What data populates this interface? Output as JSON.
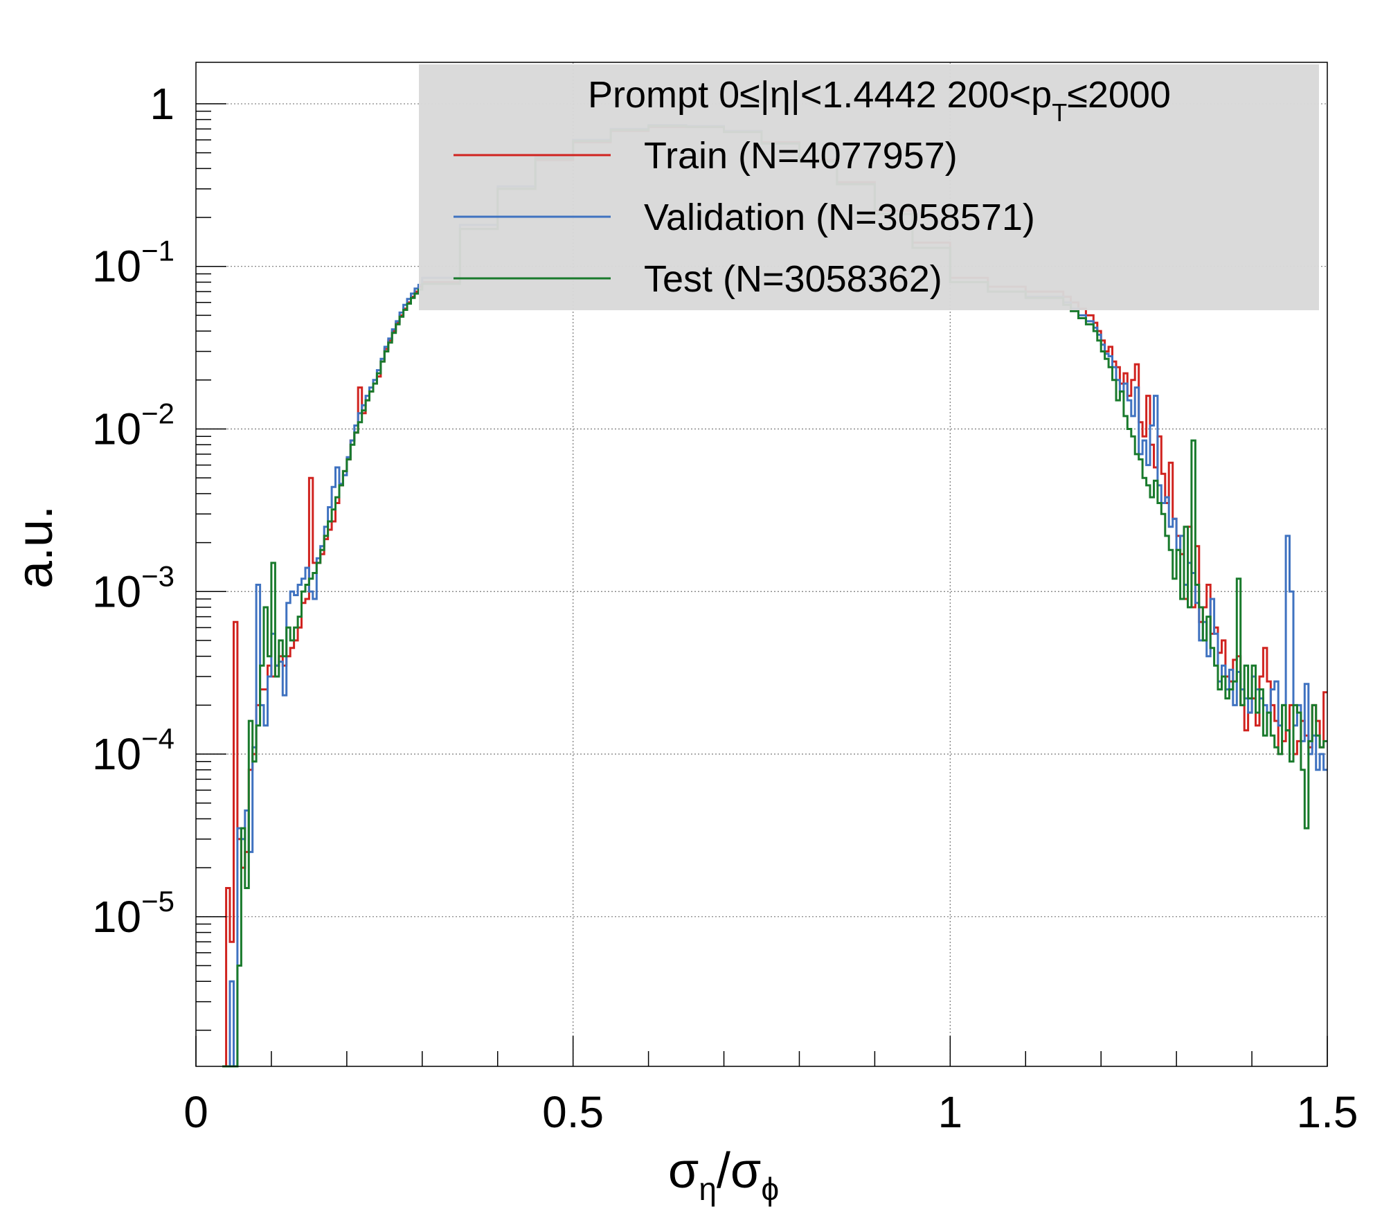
{
  "chart_data": {
    "type": "line",
    "title": "",
    "ylabel": "a.u.",
    "xlabel_main": "σ",
    "xlabel_sub1": "η",
    "xlabel_slash": "/σ",
    "xlabel_sub2": "ϕ",
    "xlim": [
      0,
      1.5
    ],
    "ylim": [
      1.2e-06,
      1.8
    ],
    "yscale": "log",
    "grid": true,
    "x_ticks": [
      {
        "value": 0,
        "label": "0"
      },
      {
        "value": 0.5,
        "label": "0.5"
      },
      {
        "value": 1,
        "label": "1"
      },
      {
        "value": 1.5,
        "label": "1.5"
      }
    ],
    "y_ticks": [
      {
        "value": 1,
        "base": "1",
        "exp": ""
      },
      {
        "value": 0.1,
        "base": "10",
        "exp": "−1"
      },
      {
        "value": 0.01,
        "base": "10",
        "exp": "−2"
      },
      {
        "value": 0.001,
        "base": "10",
        "exp": "−3"
      },
      {
        "value": 0.0001,
        "base": "10",
        "exp": "−4"
      },
      {
        "value": 1e-05,
        "base": "10",
        "exp": "−5"
      }
    ],
    "legend": {
      "placement": "top-right",
      "header_parts": [
        "Prompt  0≤|η|<1.4442  200<p",
        "T",
        "≤2000"
      ],
      "entries": [
        {
          "label": "Train (N=4077957)",
          "color": "#d0231f"
        },
        {
          "label": "Validation (N=3058571)",
          "color": "#3f72c0"
        },
        {
          "label": "Test (N=3058362)",
          "color": "#197a2c"
        }
      ]
    },
    "series": [
      {
        "name": "Train (N=4077957)",
        "color": "#d0231f",
        "x": [
          0.035,
          0.04,
          0.045,
          0.05,
          0.055,
          0.06,
          0.065,
          0.07,
          0.075,
          0.08,
          0.085,
          0.09,
          0.095,
          0.1,
          0.105,
          0.11,
          0.115,
          0.12,
          0.125,
          0.13,
          0.135,
          0.14,
          0.145,
          0.15,
          0.155,
          0.16,
          0.165,
          0.17,
          0.175,
          0.18,
          0.185,
          0.19,
          0.195,
          0.2,
          0.205,
          0.21,
          0.215,
          0.22,
          0.225,
          0.23,
          0.235,
          0.24,
          0.245,
          0.25,
          0.255,
          0.26,
          0.265,
          0.27,
          0.275,
          0.28,
          0.285,
          0.29,
          0.295,
          0.3,
          0.35,
          0.4,
          0.45,
          0.5,
          0.55,
          0.6,
          0.65,
          0.7,
          0.75,
          0.8,
          0.85,
          0.9,
          0.95,
          1.0,
          1.05,
          1.1,
          1.15,
          1.16,
          1.17,
          1.18,
          1.19,
          1.195,
          1.2,
          1.205,
          1.21,
          1.215,
          1.22,
          1.225,
          1.23,
          1.235,
          1.24,
          1.245,
          1.25,
          1.255,
          1.26,
          1.265,
          1.27,
          1.275,
          1.28,
          1.285,
          1.29,
          1.295,
          1.3,
          1.305,
          1.31,
          1.315,
          1.32,
          1.325,
          1.33,
          1.335,
          1.34,
          1.345,
          1.35,
          1.355,
          1.36,
          1.365,
          1.37,
          1.375,
          1.38,
          1.385,
          1.39,
          1.395,
          1.4,
          1.405,
          1.41,
          1.415,
          1.42,
          1.425,
          1.43,
          1.435,
          1.44,
          1.445,
          1.45,
          1.455,
          1.46,
          1.465,
          1.47,
          1.475,
          1.48,
          1.485,
          1.49,
          1.495
        ],
        "y": [
          1.2e-06,
          1.5e-05,
          7e-06,
          0.00065,
          3e-05,
          2e-05,
          2.5e-05,
          8e-05,
          0.0001,
          0.0002,
          0.00025,
          0.00025,
          0.00035,
          0.0003,
          0.00035,
          0.0004,
          0.00035,
          0.0004,
          0.00045,
          0.0005,
          0.0006,
          0.00085,
          0.0009,
          0.005,
          0.0015,
          0.0015,
          0.0017,
          0.0021,
          0.0024,
          0.0027,
          0.0035,
          0.0045,
          0.0055,
          0.0065,
          0.0085,
          0.0095,
          0.018,
          0.0125,
          0.015,
          0.017,
          0.019,
          0.021,
          0.026,
          0.031,
          0.035,
          0.04,
          0.045,
          0.05,
          0.055,
          0.06,
          0.065,
          0.07,
          0.075,
          0.08,
          0.17,
          0.3,
          0.45,
          0.58,
          0.68,
          0.72,
          0.72,
          0.68,
          0.58,
          0.45,
          0.33,
          0.22,
          0.14,
          0.085,
          0.075,
          0.07,
          0.065,
          0.06,
          0.055,
          0.05,
          0.045,
          0.04,
          0.035,
          0.03,
          0.032,
          0.026,
          0.024,
          0.019,
          0.022,
          0.016,
          0.02,
          0.025,
          0.011,
          0.009,
          0.016,
          0.008,
          0.0058,
          0.009,
          0.0053,
          0.0035,
          0.0062,
          0.0028,
          0.0022,
          0.0017,
          0.0009,
          0.0025,
          0.0008,
          0.0019,
          0.00065,
          0.0008,
          0.0011,
          0.00055,
          0.0006,
          0.00042,
          0.0005,
          0.0003,
          0.00028,
          0.00038,
          0.0004,
          0.0002,
          0.00014,
          0.00018,
          0.00022,
          0.00015,
          0.0003,
          0.00045,
          0.00028,
          0.0002,
          0.00016,
          0.0001,
          0.00012,
          0.00014,
          0.0002,
          0.0001,
          0.00012,
          0.00016,
          0.00013,
          0.00011,
          0.0002,
          0.00016,
          0.00011,
          0.00024
        ],
        "x_end": 1.5
      },
      {
        "name": "Validation (N=3058571)",
        "color": "#3f72c0",
        "x": [
          0.035,
          0.04,
          0.045,
          0.05,
          0.055,
          0.06,
          0.065,
          0.07,
          0.075,
          0.08,
          0.085,
          0.09,
          0.095,
          0.1,
          0.105,
          0.11,
          0.115,
          0.12,
          0.125,
          0.13,
          0.135,
          0.14,
          0.145,
          0.15,
          0.155,
          0.16,
          0.165,
          0.17,
          0.175,
          0.18,
          0.185,
          0.19,
          0.195,
          0.2,
          0.205,
          0.21,
          0.215,
          0.22,
          0.225,
          0.23,
          0.235,
          0.24,
          0.245,
          0.25,
          0.255,
          0.26,
          0.265,
          0.27,
          0.275,
          0.28,
          0.285,
          0.29,
          0.295,
          0.3,
          0.35,
          0.4,
          0.45,
          0.5,
          0.55,
          0.6,
          0.65,
          0.7,
          0.75,
          0.8,
          0.85,
          0.9,
          0.95,
          1.0,
          1.05,
          1.1,
          1.15,
          1.16,
          1.17,
          1.18,
          1.19,
          1.195,
          1.2,
          1.205,
          1.21,
          1.215,
          1.22,
          1.225,
          1.23,
          1.235,
          1.24,
          1.245,
          1.25,
          1.255,
          1.26,
          1.265,
          1.27,
          1.275,
          1.28,
          1.285,
          1.29,
          1.295,
          1.3,
          1.305,
          1.31,
          1.315,
          1.32,
          1.325,
          1.33,
          1.335,
          1.34,
          1.345,
          1.35,
          1.355,
          1.36,
          1.365,
          1.37,
          1.375,
          1.38,
          1.385,
          1.39,
          1.395,
          1.4,
          1.405,
          1.41,
          1.415,
          1.42,
          1.425,
          1.43,
          1.435,
          1.44,
          1.445,
          1.45,
          1.455,
          1.46,
          1.465,
          1.47,
          1.475,
          1.48,
          1.485,
          1.49,
          1.495
        ],
        "y": [
          1.2e-06,
          1.2e-06,
          4e-06,
          1.2e-06,
          3.5e-05,
          3e-05,
          4.5e-05,
          2.5e-05,
          0.00011,
          0.0011,
          0.0002,
          0.00015,
          0.0003,
          0.00055,
          0.00035,
          0.00037,
          0.00023,
          0.00085,
          0.001,
          0.00095,
          0.0011,
          0.0012,
          0.0014,
          0.001,
          0.0009,
          0.0016,
          0.0019,
          0.0025,
          0.0033,
          0.0044,
          0.0058,
          0.0046,
          0.0052,
          0.0067,
          0.0085,
          0.0105,
          0.0125,
          0.014,
          0.016,
          0.018,
          0.02,
          0.023,
          0.027,
          0.032,
          0.036,
          0.041,
          0.046,
          0.052,
          0.058,
          0.063,
          0.068,
          0.073,
          0.077,
          0.085,
          0.18,
          0.31,
          0.47,
          0.6,
          0.7,
          0.74,
          0.73,
          0.68,
          0.57,
          0.44,
          0.32,
          0.21,
          0.13,
          0.08,
          0.07,
          0.065,
          0.06,
          0.055,
          0.05,
          0.046,
          0.042,
          0.038,
          0.033,
          0.029,
          0.028,
          0.024,
          0.02,
          0.017,
          0.019,
          0.015,
          0.012,
          0.018,
          0.007,
          0.0085,
          0.006,
          0.0105,
          0.016,
          0.0045,
          0.0035,
          0.0038,
          0.0025,
          0.0028,
          0.0018,
          0.0022,
          0.0011,
          0.0015,
          0.0013,
          0.00085,
          0.0005,
          0.00065,
          0.0004,
          0.0009,
          0.00055,
          0.00028,
          0.00035,
          0.00025,
          0.00033,
          0.0002,
          0.00032,
          0.00025,
          0.00022,
          0.00018,
          0.0003,
          0.00025,
          0.00022,
          0.0002,
          0.00018,
          0.00025,
          0.00028,
          0.00015,
          0.0002,
          0.0022,
          0.001,
          0.00015,
          0.0002,
          0.00012,
          0.00027,
          0.0001,
          0.00013,
          8e-05,
          0.0001,
          8e-05
        ],
        "x_end": 1.5
      },
      {
        "name": "Test (N=3058362)",
        "color": "#197a2c",
        "x": [
          0.035,
          0.04,
          0.045,
          0.05,
          0.055,
          0.06,
          0.065,
          0.07,
          0.075,
          0.08,
          0.085,
          0.09,
          0.095,
          0.1,
          0.105,
          0.11,
          0.115,
          0.12,
          0.125,
          0.13,
          0.135,
          0.14,
          0.145,
          0.15,
          0.155,
          0.16,
          0.165,
          0.17,
          0.175,
          0.18,
          0.185,
          0.19,
          0.195,
          0.2,
          0.205,
          0.21,
          0.215,
          0.22,
          0.225,
          0.23,
          0.235,
          0.24,
          0.245,
          0.25,
          0.255,
          0.26,
          0.265,
          0.27,
          0.275,
          0.28,
          0.285,
          0.29,
          0.295,
          0.3,
          0.35,
          0.4,
          0.45,
          0.5,
          0.55,
          0.6,
          0.65,
          0.7,
          0.75,
          0.8,
          0.85,
          0.9,
          0.95,
          1.0,
          1.05,
          1.1,
          1.15,
          1.16,
          1.17,
          1.18,
          1.19,
          1.195,
          1.2,
          1.205,
          1.21,
          1.215,
          1.22,
          1.225,
          1.23,
          1.235,
          1.24,
          1.245,
          1.25,
          1.255,
          1.26,
          1.265,
          1.27,
          1.275,
          1.28,
          1.285,
          1.29,
          1.295,
          1.3,
          1.305,
          1.31,
          1.315,
          1.32,
          1.325,
          1.33,
          1.335,
          1.34,
          1.345,
          1.35,
          1.355,
          1.36,
          1.365,
          1.37,
          1.375,
          1.38,
          1.385,
          1.39,
          1.395,
          1.4,
          1.405,
          1.41,
          1.415,
          1.42,
          1.425,
          1.43,
          1.435,
          1.44,
          1.445,
          1.45,
          1.455,
          1.46,
          1.465,
          1.47,
          1.475,
          1.48,
          1.485,
          1.49,
          1.495
        ],
        "y": [
          1.2e-06,
          1.2e-06,
          1.2e-06,
          1.2e-06,
          5e-06,
          3.5e-05,
          1.5e-05,
          0.00016,
          9e-05,
          0.00015,
          0.00035,
          0.0008,
          0.0004,
          0.0015,
          0.0003,
          0.0005,
          0.0004,
          0.0006,
          0.0005,
          0.0006,
          0.0007,
          0.001,
          0.0011,
          0.0012,
          0.0013,
          0.0015,
          0.0018,
          0.0022,
          0.0027,
          0.0032,
          0.0038,
          0.0045,
          0.0055,
          0.0065,
          0.008,
          0.0095,
          0.011,
          0.013,
          0.015,
          0.017,
          0.019,
          0.022,
          0.026,
          0.03,
          0.034,
          0.039,
          0.044,
          0.049,
          0.054,
          0.059,
          0.064,
          0.068,
          0.072,
          0.078,
          0.17,
          0.3,
          0.46,
          0.59,
          0.69,
          0.73,
          0.72,
          0.67,
          0.57,
          0.44,
          0.32,
          0.21,
          0.13,
          0.08,
          0.07,
          0.064,
          0.058,
          0.053,
          0.048,
          0.044,
          0.04,
          0.035,
          0.03,
          0.027,
          0.024,
          0.02,
          0.015,
          0.017,
          0.012,
          0.01,
          0.009,
          0.007,
          0.0065,
          0.005,
          0.0045,
          0.0038,
          0.0048,
          0.0035,
          0.003,
          0.0022,
          0.0018,
          0.0012,
          0.0018,
          0.0009,
          0.0025,
          0.0008,
          0.0085,
          0.0011,
          0.0008,
          0.0005,
          0.0007,
          0.00045,
          0.00035,
          0.00025,
          0.0003,
          0.00022,
          0.00025,
          0.00028,
          0.0012,
          0.0002,
          0.00035,
          0.00022,
          0.00035,
          0.00018,
          0.00025,
          0.00013,
          0.00018,
          0.00013,
          0.00011,
          0.0001,
          0.0002,
          0.00014,
          9e-05,
          0.0002,
          0.00018,
          8e-05,
          3.5e-05,
          0.00012,
          0.0002,
          0.00013,
          0.00011,
          0.00012
        ],
        "x_end": 1.5
      }
    ]
  }
}
